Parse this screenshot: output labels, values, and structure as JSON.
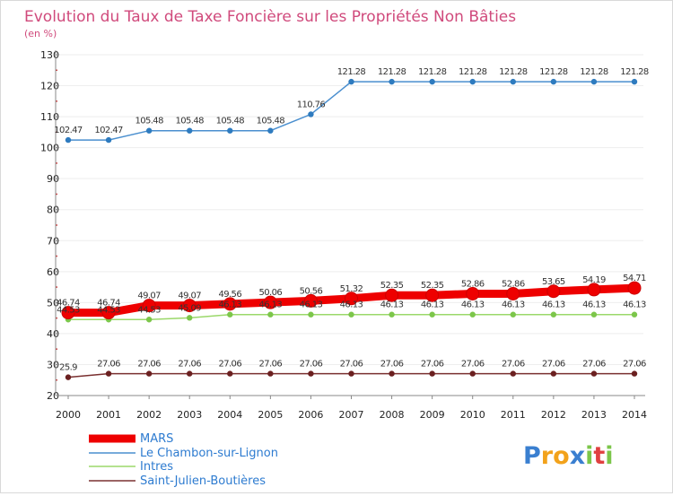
{
  "colors": {
    "title": "#d04a7c",
    "axis": "#888888",
    "grid": "#eeeeee"
  },
  "chart_data": {
    "type": "line",
    "title": "Evolution du Taux de Taxe Foncière sur les Propriétés Non Bâties",
    "ylabel": "(en %)",
    "xlabel": "",
    "ylim": [
      20,
      130
    ],
    "yticks": [
      "20",
      "30",
      "40",
      "50",
      "60",
      "70",
      "80",
      "90",
      "100",
      "110",
      "120",
      "130"
    ],
    "categories": [
      "2000",
      "2001",
      "2002",
      "2003",
      "2004",
      "2005",
      "2006",
      "2007",
      "2008",
      "2009",
      "2010",
      "2011",
      "2012",
      "2013",
      "2014"
    ],
    "series": [
      {
        "name": "Le Chambon-sur-Lignon",
        "color": "#4a8fcf",
        "marker": "#2e7bbf",
        "values": [
          102.47,
          102.47,
          105.48,
          105.48,
          105.48,
          105.48,
          110.76,
          121.28,
          121.28,
          121.28,
          121.28,
          121.28,
          121.28,
          121.28,
          121.28
        ],
        "labels": [
          "102.47",
          "102.47",
          "105.48",
          "105.48",
          "105.48",
          "105.48",
          "110.76",
          "121.28",
          "121.28",
          "121.28",
          "121.28",
          "121.28",
          "121.28",
          "121.28",
          "121.28"
        ]
      },
      {
        "name": "Intres",
        "color": "#9bd86a",
        "marker": "#7cc64a",
        "values": [
          44.53,
          44.53,
          44.53,
          45.09,
          46.13,
          46.13,
          46.13,
          46.13,
          46.13,
          46.13,
          46.13,
          46.13,
          46.13,
          46.13,
          46.13
        ],
        "labels": [
          "44.53",
          "44.53",
          "44.53",
          "45.09",
          "46.13",
          "46.13",
          "46.13",
          "46.13",
          "46.13",
          "46.13",
          "46.13",
          "46.13",
          "46.13",
          "46.13",
          "46.13"
        ]
      },
      {
        "name": "Saint-Julien-Boutières",
        "color": "#7a3030",
        "marker": "#6b2020",
        "values": [
          25.9,
          27.06,
          27.06,
          27.06,
          27.06,
          27.06,
          27.06,
          27.06,
          27.06,
          27.06,
          27.06,
          27.06,
          27.06,
          27.06,
          27.06
        ],
        "labels": [
          "25.9",
          "27.06",
          "27.06",
          "27.06",
          "27.06",
          "27.06",
          "27.06",
          "27.06",
          "27.06",
          "27.06",
          "27.06",
          "27.06",
          "27.06",
          "27.06",
          "27.06"
        ]
      },
      {
        "name": "MARS",
        "color": "#ee0000",
        "marker": "#ee0000",
        "values": [
          46.74,
          46.74,
          49.07,
          49.07,
          49.56,
          50.06,
          50.56,
          51.32,
          52.35,
          52.35,
          52.86,
          52.86,
          53.65,
          54.19,
          54.71
        ],
        "labels": [
          "46.74",
          "46.74",
          "49.07",
          "49.07",
          "49.56",
          "50.06",
          "50.56",
          "51.32",
          "52.35",
          "52.35",
          "52.86",
          "52.86",
          "53.65",
          "54.19",
          "54.71"
        ]
      }
    ],
    "legend": [
      "MARS",
      "Le Chambon-sur-Lignon",
      "Intres",
      "Saint-Julien-Boutières"
    ],
    "legend_placement": "bottom-left"
  },
  "logo": {
    "letters": [
      {
        "ch": "P",
        "color": "#3a7fd0"
      },
      {
        "ch": "r",
        "color": "#f2a21b"
      },
      {
        "ch": "o",
        "color": "#f2a21b"
      },
      {
        "ch": "x",
        "color": "#3a7fd0"
      },
      {
        "ch": "i",
        "color": "#7cc64a"
      },
      {
        "ch": "t",
        "color": "#e04040"
      },
      {
        "ch": "i",
        "color": "#7cc64a"
      }
    ]
  }
}
